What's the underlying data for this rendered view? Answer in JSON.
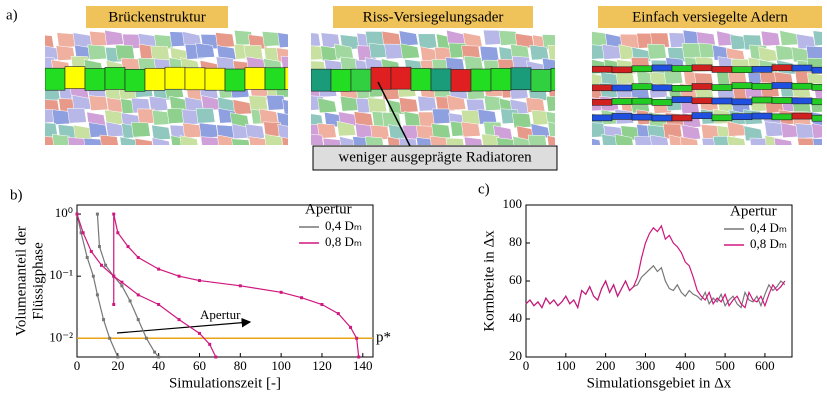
{
  "panel_a": {
    "label": "a)",
    "images": [
      {
        "title": "Brückenstruktur"
      },
      {
        "title": "Riss-Versiegelungsader"
      },
      {
        "title": "Einfach versiegelte Adern"
      }
    ],
    "annotation": "weniger ausgeprägte Radiatoren"
  },
  "chart_data": [
    {
      "type": "line",
      "label": "b)",
      "xlabel": "Simulationszeit [-]",
      "ylabel": [
        "Volumenanteil der",
        "Flüssigphase"
      ],
      "log_y": true,
      "xlim": [
        0,
        145
      ],
      "ylim": [
        0.005,
        1.4
      ],
      "xticks": [
        0,
        20,
        40,
        60,
        80,
        100,
        120,
        140
      ],
      "yticks": [
        {
          "value": 0.01,
          "label": "10⁻²"
        },
        {
          "value": 0.1,
          "label": "10⁻¹"
        },
        {
          "value": 1,
          "label": "10⁰"
        }
      ],
      "legend_title": "Apertur",
      "hline": {
        "value": 0.01,
        "label": "p*",
        "color": "#e8a317"
      },
      "arrow_label": "Apertur",
      "series": [
        {
          "name": "0,4 Dₘ",
          "color": "#777777",
          "x": [
            0,
            2,
            5,
            8,
            10,
            13,
            16,
            20,
            null,
            10,
            11,
            14,
            18,
            22,
            26,
            30,
            34,
            38,
            40
          ],
          "values": [
            1,
            0.5,
            0.2,
            0.1,
            0.05,
            0.02,
            0.01,
            0.005,
            null,
            1,
            0.3,
            0.15,
            0.1,
            0.07,
            0.04,
            0.02,
            0.01,
            0.006,
            0.005
          ]
        },
        {
          "name": "0,8 Dₘ",
          "color": "#d0177f",
          "x": [
            0,
            3,
            7,
            12,
            18,
            22,
            30,
            40,
            50,
            60,
            65,
            68,
            null,
            18,
            18,
            20,
            25,
            30,
            40,
            50,
            60,
            80,
            100,
            110,
            120,
            128,
            134,
            137,
            138
          ],
          "values": [
            1,
            0.5,
            0.25,
            0.15,
            0.1,
            0.08,
            0.05,
            0.035,
            0.02,
            0.012,
            0.008,
            0.005,
            null,
            0.035,
            1,
            0.5,
            0.3,
            0.2,
            0.13,
            0.1,
            0.085,
            0.07,
            0.055,
            0.045,
            0.035,
            0.025,
            0.015,
            0.01,
            0.005
          ]
        }
      ]
    },
    {
      "type": "line",
      "label": "c)",
      "xlabel": "Simulationsgebiet in Δx",
      "ylabel": [
        "Kornbreite in Δx"
      ],
      "log_y": false,
      "xlim": [
        0,
        668
      ],
      "ylim": [
        20,
        100
      ],
      "xticks": [
        0,
        100,
        200,
        300,
        400,
        500,
        600
      ],
      "yticks": [
        20,
        40,
        60,
        80,
        100
      ],
      "legend_title": "Apertur",
      "series": [
        {
          "name": "0,4 Dₘ",
          "color": "#777777",
          "x": [
            0,
            10,
            20,
            30,
            40,
            50,
            60,
            70,
            80,
            90,
            100,
            110,
            120,
            130,
            140,
            150,
            160,
            170,
            180,
            190,
            200,
            210,
            220,
            230,
            240,
            250,
            260,
            270,
            280,
            290,
            300,
            310,
            320,
            330,
            340,
            350,
            360,
            370,
            380,
            390,
            400,
            410,
            420,
            430,
            440,
            450,
            460,
            470,
            480,
            490,
            500,
            510,
            520,
            530,
            540,
            550,
            560,
            570,
            580,
            590,
            600,
            610,
            620,
            630,
            640,
            650
          ],
          "values": [
            48,
            50,
            47,
            49,
            46,
            51,
            48,
            50,
            47,
            49,
            52,
            48,
            50,
            46,
            55,
            53,
            57,
            52,
            50,
            56,
            60,
            54,
            58,
            52,
            56,
            60,
            55,
            57,
            58,
            62,
            64,
            66,
            68,
            65,
            67,
            60,
            56,
            55,
            58,
            54,
            52,
            55,
            53,
            52,
            50,
            54,
            48,
            51,
            49,
            53,
            47,
            50,
            52,
            48,
            46,
            54,
            50,
            49,
            52,
            47,
            53,
            58,
            55,
            57,
            60,
            58
          ]
        },
        {
          "name": "0,8 Dₘ",
          "color": "#d0177f",
          "x": [
            0,
            10,
            20,
            30,
            40,
            50,
            60,
            70,
            80,
            90,
            100,
            110,
            120,
            130,
            140,
            150,
            160,
            170,
            180,
            190,
            200,
            210,
            220,
            230,
            240,
            250,
            260,
            270,
            280,
            290,
            300,
            310,
            320,
            330,
            340,
            350,
            360,
            370,
            380,
            390,
            400,
            410,
            420,
            430,
            440,
            450,
            460,
            470,
            480,
            490,
            500,
            510,
            520,
            530,
            540,
            550,
            560,
            570,
            580,
            590,
            600,
            610,
            620,
            630,
            640,
            650
          ],
          "values": [
            48,
            50,
            47,
            49,
            46,
            51,
            48,
            50,
            47,
            49,
            52,
            48,
            50,
            46,
            55,
            53,
            57,
            52,
            50,
            56,
            60,
            54,
            58,
            52,
            56,
            60,
            55,
            57,
            62,
            72,
            80,
            85,
            88,
            86,
            89,
            82,
            84,
            80,
            78,
            75,
            70,
            68,
            62,
            55,
            52,
            50,
            54,
            48,
            51,
            49,
            53,
            47,
            50,
            52,
            48,
            46,
            54,
            50,
            49,
            52,
            47,
            53,
            58,
            55,
            57,
            60
          ]
        }
      ]
    }
  ]
}
